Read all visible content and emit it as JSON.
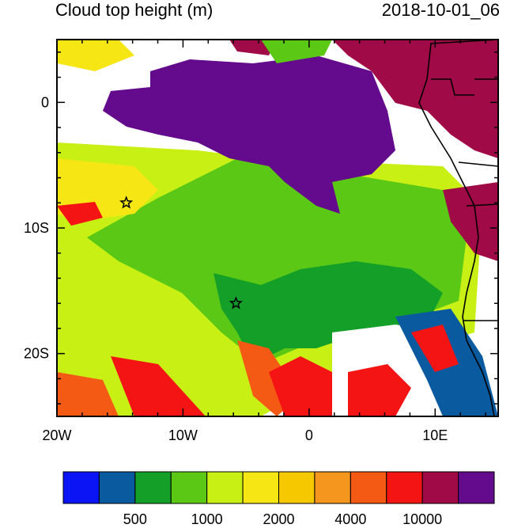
{
  "title_left": "Cloud top height (m)",
  "title_right": "2018-10-01_06",
  "map": {
    "lon_range": [
      -20,
      15
    ],
    "lat_range": [
      -25,
      5
    ],
    "x_ticks": [
      {
        "value": -20,
        "label": "20W"
      },
      {
        "value": -10,
        "label": "10W"
      },
      {
        "value": 0,
        "label": "0"
      },
      {
        "value": 10,
        "label": "10E"
      }
    ],
    "y_ticks": [
      {
        "value": 0,
        "label": "0"
      },
      {
        "value": -10,
        "label": "10S"
      },
      {
        "value": -20,
        "label": "20S"
      }
    ],
    "markers": [
      {
        "name": "star",
        "lon": -14.5,
        "lat": -8.0
      },
      {
        "name": "star",
        "lon": -5.8,
        "lat": -16.0
      }
    ]
  },
  "colorbar": {
    "colors": [
      "#0a14f5",
      "#0a5aa0",
      "#14a028",
      "#5ac814",
      "#c8f014",
      "#f5e614",
      "#f5c800",
      "#f5961e",
      "#f55a14",
      "#f51414",
      "#a00a46",
      "#640a8c"
    ],
    "labels": [
      {
        "after_index": 1,
        "text": "500"
      },
      {
        "after_index": 3,
        "text": "1000"
      },
      {
        "after_index": 5,
        "text": "2000"
      },
      {
        "after_index": 7,
        "text": "4000"
      },
      {
        "after_index": 9,
        "text": "10000"
      }
    ]
  }
}
